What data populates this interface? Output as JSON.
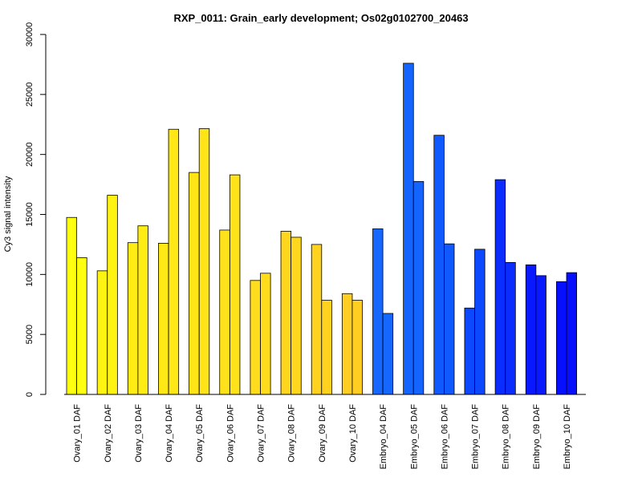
{
  "chart_data": {
    "type": "bar",
    "title": "RXP_0011: Grain_early development; Os02g0102700_20463",
    "xlabel": "",
    "ylabel": "Cy3 signal intensity",
    "ylim": [
      0,
      30000
    ],
    "y_ticks": [
      0,
      5000,
      10000,
      15000,
      20000,
      25000,
      30000
    ],
    "y_tick_labels": [
      "0",
      "5000",
      "10000",
      "15000",
      "20000",
      "25000",
      "30000"
    ],
    "grid": false,
    "legend": "none",
    "bar_style": "grouped pairs per category, black outline",
    "categories": [
      "Ovary_01 DAF",
      "Ovary_02 DAF",
      "Ovary_03 DAF",
      "Ovary_04 DAF",
      "Ovary_05 DAF",
      "Ovary_06 DAF",
      "Ovary_07 DAF",
      "Ovary_08 DAF",
      "Ovary_09 DAF",
      "Ovary_10 DAF",
      "Embryo_04 DAF",
      "Embryo_05 DAF",
      "Embryo_06 DAF",
      "Embryo_07 DAF",
      "Embryo_08 DAF",
      "Embryo_09 DAF",
      "Embryo_10 DAF"
    ],
    "category_colors": [
      "#ffff10",
      "#fff312",
      "#ffec14",
      "#ffe816",
      "#ffe418",
      "#ffe31a",
      "#ffdc1c",
      "#ffd61e",
      "#ffd220",
      "#ffce22",
      "#1567ff",
      "#1464ff",
      "#1059ff",
      "#0c48ff",
      "#0a2cff",
      "#0818ff",
      "#0610ff"
    ],
    "series": [
      {
        "values": [
          14750,
          10300,
          12650,
          12600,
          18500,
          13700,
          9500,
          13600,
          12500,
          8400,
          13800,
          27600,
          21600,
          7200,
          17900,
          10800,
          9400
        ]
      },
      {
        "values": [
          11400,
          16600,
          14050,
          22100,
          22150,
          18300,
          10100,
          13100,
          7850,
          7850,
          6750,
          17750,
          12550,
          12100,
          11000,
          9900,
          10150
        ]
      }
    ]
  }
}
